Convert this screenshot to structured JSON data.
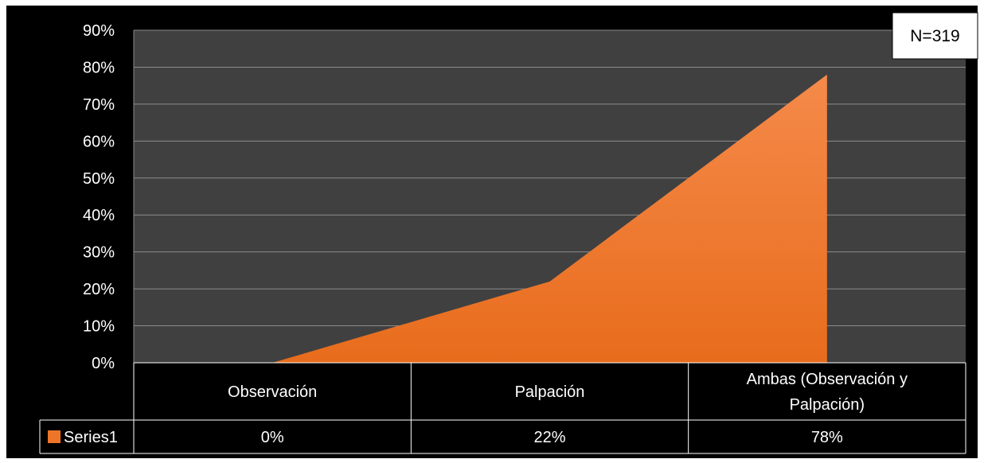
{
  "chart_data": {
    "type": "area",
    "categories": [
      "Observación",
      "Palpación",
      "Ambas (Observación y Palpación)"
    ],
    "category_lines": [
      [
        "Observación"
      ],
      [
        "Palpación"
      ],
      [
        "Ambas (Observación y",
        "Palpación)"
      ]
    ],
    "series": [
      {
        "name": "Series1",
        "values": [
          0,
          22,
          78
        ],
        "value_labels": [
          "0%",
          "22%",
          "78%"
        ]
      }
    ],
    "ylim": [
      0,
      90
    ],
    "yticks": [
      "0%",
      "10%",
      "20%",
      "30%",
      "40%",
      "50%",
      "60%",
      "70%",
      "80%",
      "90%"
    ],
    "annotation": "N=319",
    "grid": true,
    "data_table": true,
    "legend_placement": "data-table",
    "colors": {
      "background": "#000000",
      "plot": "#404040",
      "gridline": "#8c8c8c",
      "series": "#ee7528",
      "series_light": "#f58a4a",
      "text": "#ffffff"
    }
  }
}
